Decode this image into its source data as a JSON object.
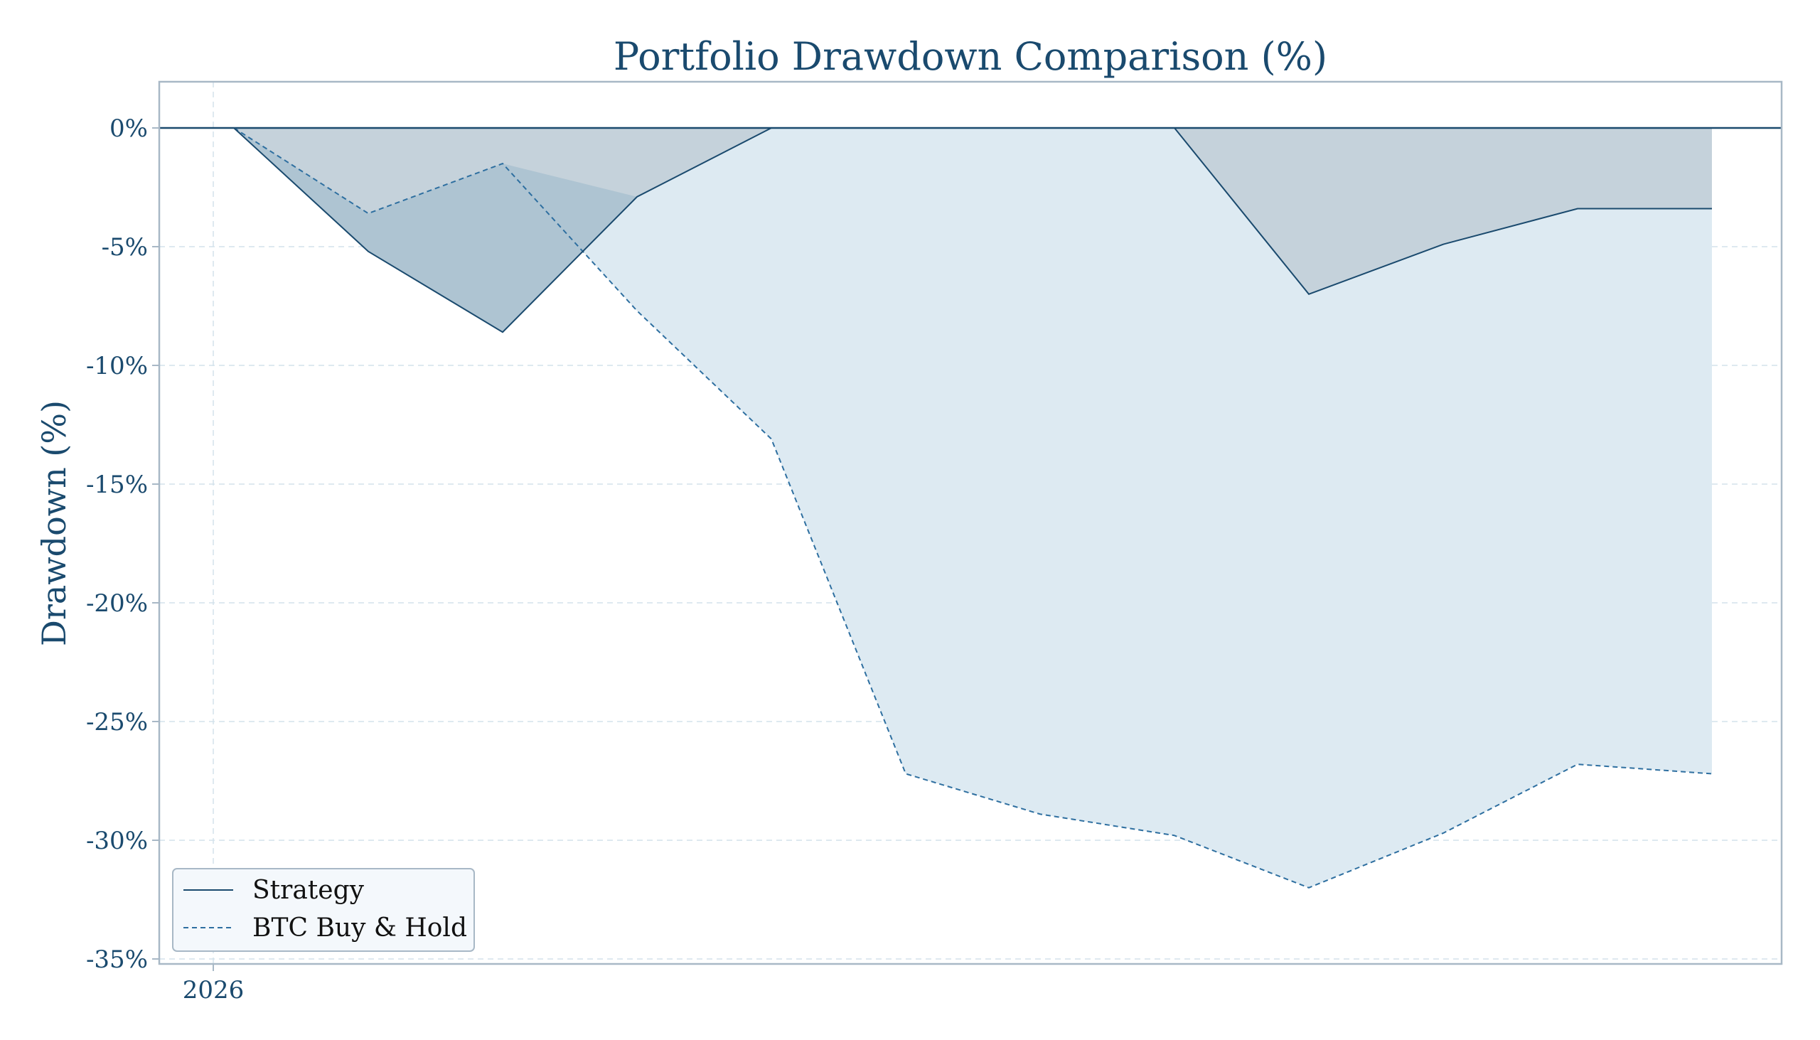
{
  "chart_data": {
    "type": "line",
    "title": "Portfolio Drawdown Comparison (%)",
    "xlabel": "",
    "ylabel": "Drawdown (%)",
    "x_tick_labels": [
      "2026"
    ],
    "y_ticks": [
      0,
      -5,
      -10,
      -15,
      -20,
      -25,
      -30,
      -35
    ],
    "y_tick_labels": [
      "0%",
      "-5%",
      "-10%",
      "-15%",
      "-20%",
      "-25%",
      "-30%",
      "-35%"
    ],
    "ylim": [
      -35,
      2
    ],
    "grid": true,
    "legend_position": "lower-left",
    "x": [
      0,
      1,
      2,
      3,
      4,
      5,
      6,
      7,
      8,
      9,
      10,
      11
    ],
    "series": [
      {
        "name": "Strategy",
        "style": "solid",
        "color": "#1a4a6e",
        "fill_color": "#aec4d2",
        "values": [
          0,
          -5.2,
          -8.6,
          -2.9,
          0,
          0,
          0,
          0,
          -7.0,
          -4.9,
          -3.4,
          -3.4
        ]
      },
      {
        "name": "BTC Buy & Hold",
        "style": "dashed",
        "color": "#2e6fa0",
        "fill_color": "#ddeaf2",
        "values": [
          0,
          -3.6,
          -1.5,
          -7.7,
          -13.1,
          -27.2,
          -28.9,
          -29.8,
          -32.0,
          -29.7,
          -26.8,
          -27.2
        ]
      }
    ],
    "baseline_color": "#1a4a6e",
    "overlap_fill_color": "#c5d2db",
    "axes_color": "#a8b8c6",
    "grid_color": "#d4e2ec",
    "legend_bg": "#f4f8fc"
  }
}
